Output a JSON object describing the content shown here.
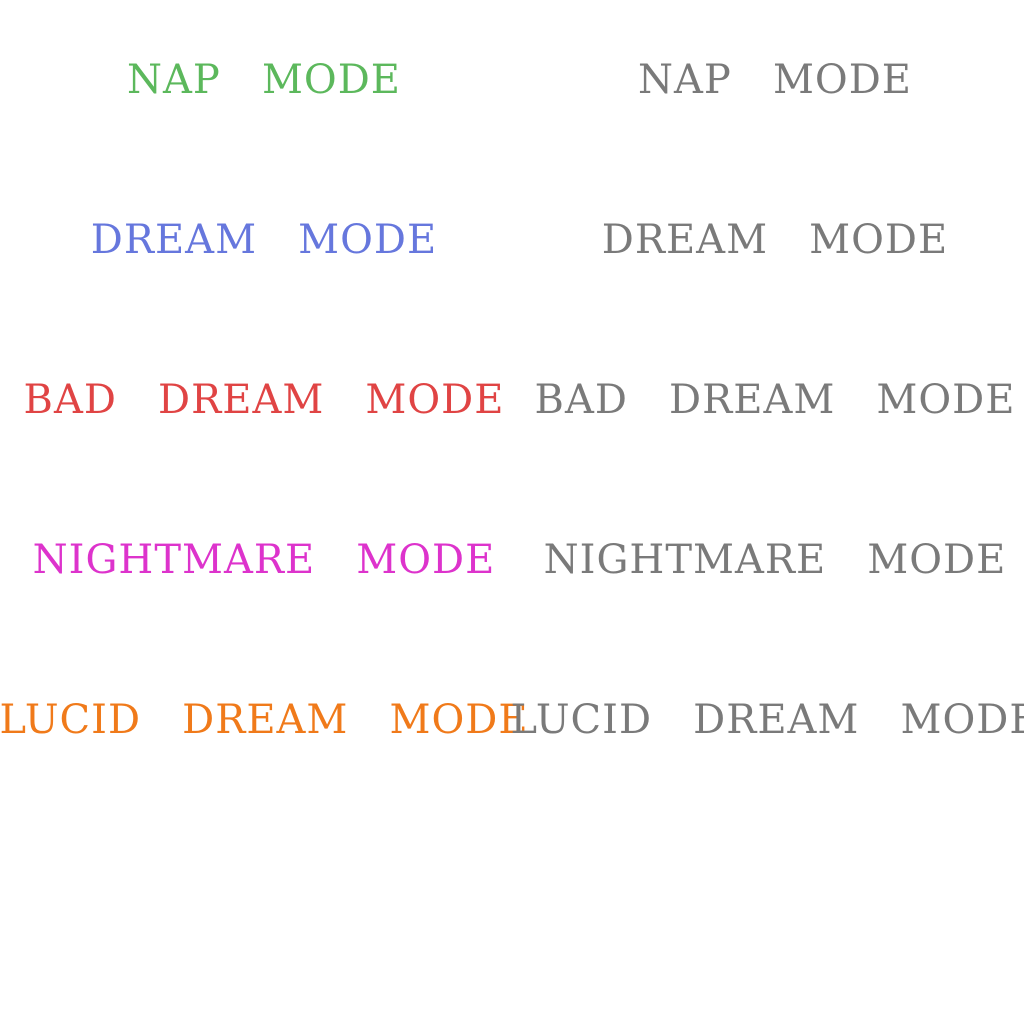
{
  "colors": {
    "nap": "#5cb85c",
    "dream": "#6677dd",
    "bad_dream": "#e04444",
    "nightmare": "#dd33cc",
    "lucid_dream": "#f07a1a",
    "inactive": "#7a7a7a"
  },
  "labels": {
    "nap": "NAP   MODE",
    "dream": "DREAM   MODE",
    "bad_dream": "BAD   DREAM   MODE",
    "nightmare": "NIGHTMARE   MODE",
    "lucid_dream": "LUCID   DREAM   MODE"
  },
  "colored_column": [
    {
      "text": "NAP   MODE",
      "color": "#5cb85c"
    },
    {
      "text": "DREAM   MODE",
      "color": "#6677dd"
    },
    {
      "text": "BAD   DREAM   MODE",
      "color": "#e04444"
    },
    {
      "text": "NIGHTMARE   MODE",
      "color": "#dd33cc"
    },
    {
      "text": "LUCID   DREAM   MODE",
      "color": "#f07a1a"
    }
  ],
  "gray_column": [
    {
      "text": "NAP   MODE",
      "color": "#7a7a7a"
    },
    {
      "text": "DREAM   MODE",
      "color": "#7a7a7a"
    },
    {
      "text": "BAD   DREAM   MODE",
      "color": "#7a7a7a"
    },
    {
      "text": "NIGHTMARE   MODE",
      "color": "#7a7a7a"
    },
    {
      "text": "LUCID   DREAM   MODE",
      "color": "#7a7a7a"
    }
  ]
}
